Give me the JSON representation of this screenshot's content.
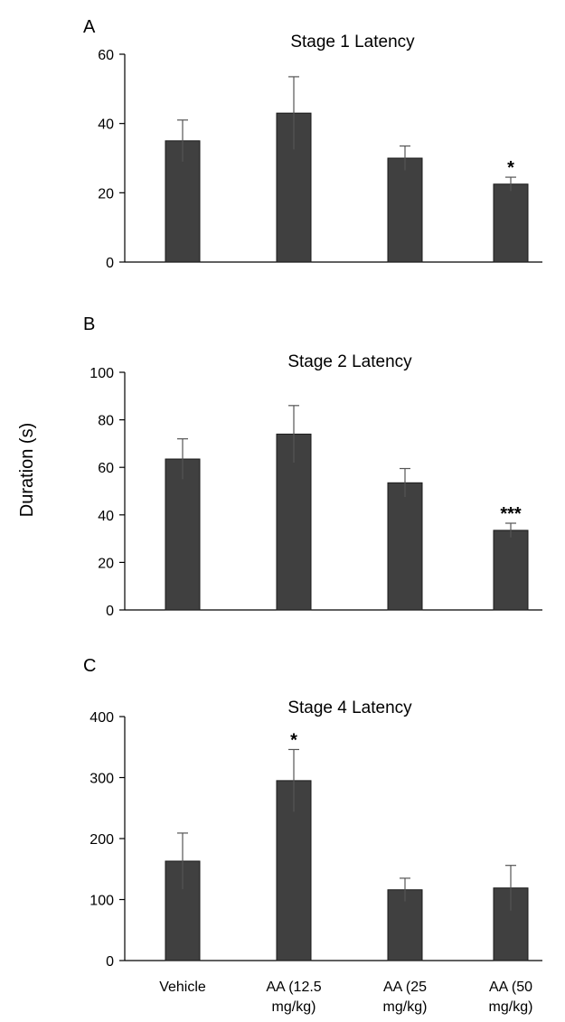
{
  "ylabel": "Duration (s)",
  "categories": [
    "Vehicle",
    "AA (12.5 mg/kg)",
    "AA (25 mg/kg)",
    "AA (50 mg/kg)"
  ],
  "category_lines": [
    [
      "Vehicle"
    ],
    [
      "AA (12.5",
      "mg/kg)"
    ],
    [
      "AA (25",
      "mg/kg)"
    ],
    [
      "AA (50",
      "mg/kg)"
    ]
  ],
  "colors": {
    "bar": "#404040",
    "bar_edge": "#1a1a1a",
    "axis": "#000000"
  },
  "chart_data": [
    {
      "type": "bar",
      "panel": "A",
      "title": "Stage 1 Latency",
      "categories": [
        "Vehicle",
        "AA (12.5 mg/kg)",
        "AA (25 mg/kg)",
        "AA (50 mg/kg)"
      ],
      "values": [
        35,
        43,
        30,
        22.5
      ],
      "errors": [
        6,
        10.5,
        3.5,
        2
      ],
      "significance": [
        "",
        "",
        "",
        "*"
      ],
      "ylim": [
        0,
        60
      ],
      "yticks": [
        0,
        20,
        40,
        60
      ]
    },
    {
      "type": "bar",
      "panel": "B",
      "title": "Stage 2 Latency",
      "categories": [
        "Vehicle",
        "AA (12.5 mg/kg)",
        "AA (25 mg/kg)",
        "AA (50 mg/kg)"
      ],
      "values": [
        63.5,
        74,
        53.5,
        33.5
      ],
      "errors": [
        8.5,
        12,
        6,
        3
      ],
      "significance": [
        "",
        "",
        "",
        "***"
      ],
      "ylim": [
        0,
        100
      ],
      "yticks": [
        0,
        20,
        40,
        60,
        80,
        100
      ]
    },
    {
      "type": "bar",
      "panel": "C",
      "title": "Stage 4 Latency",
      "categories": [
        "Vehicle",
        "AA (12.5 mg/kg)",
        "AA (25 mg/kg)",
        "AA (50 mg/kg)"
      ],
      "values": [
        163,
        295,
        116,
        119
      ],
      "errors": [
        46,
        51,
        19,
        37
      ],
      "significance": [
        "",
        "*",
        "",
        ""
      ],
      "ylim": [
        0,
        400
      ],
      "yticks": [
        0,
        100,
        200,
        300,
        400
      ]
    }
  ]
}
